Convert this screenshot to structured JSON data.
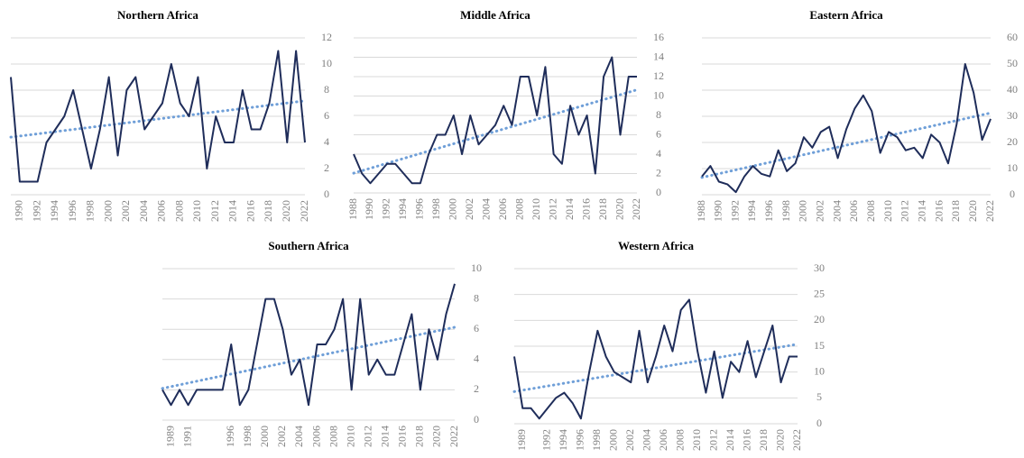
{
  "chart_data": [
    {
      "type": "line",
      "title": "Northern Africa",
      "x": [
        1989,
        1990,
        1991,
        1992,
        1993,
        1994,
        1995,
        1996,
        1997,
        1998,
        1999,
        2000,
        2001,
        2002,
        2003,
        2004,
        2005,
        2006,
        2007,
        2008,
        2009,
        2010,
        2011,
        2012,
        2013,
        2014,
        2015,
        2016,
        2017,
        2018,
        2019,
        2020,
        2021,
        2022
      ],
      "xlim": [
        1989,
        2022
      ],
      "xticks": [
        1990,
        1992,
        1994,
        1996,
        1998,
        2000,
        2002,
        2004,
        2006,
        2008,
        2010,
        2012,
        2014,
        2016,
        2018,
        2020,
        2022
      ],
      "ylim": [
        0,
        12
      ],
      "yticks": [
        0,
        2,
        4,
        6,
        8,
        10,
        12
      ],
      "grid": true,
      "trendline": true,
      "trend_color": "#6f9fd8",
      "series": [
        {
          "color": "#1f2d5a",
          "values": [
            9,
            1,
            1,
            1,
            4,
            5,
            6,
            8,
            5,
            2,
            5,
            9,
            3,
            8,
            9,
            5,
            6,
            7,
            10,
            7,
            6,
            9,
            2,
            6,
            4,
            4,
            8,
            5,
            5,
            7,
            11,
            4,
            11,
            4
          ]
        }
      ]
    },
    {
      "type": "line",
      "title": "Middle Africa",
      "x": [
        1988,
        1989,
        1990,
        1991,
        1992,
        1993,
        1994,
        1995,
        1996,
        1997,
        1998,
        1999,
        2000,
        2001,
        2002,
        2003,
        2004,
        2005,
        2006,
        2007,
        2008,
        2009,
        2010,
        2011,
        2012,
        2013,
        2014,
        2015,
        2016,
        2017,
        2018,
        2019,
        2020,
        2021,
        2022
      ],
      "xlim": [
        1988,
        2022
      ],
      "xticks": [
        1988,
        1990,
        1992,
        1994,
        1996,
        1998,
        2000,
        2002,
        2004,
        2006,
        2008,
        2010,
        2012,
        2014,
        2016,
        2018,
        2020,
        2022
      ],
      "ylim": [
        0,
        16
      ],
      "yticks": [
        0,
        2,
        4,
        6,
        8,
        10,
        12,
        14,
        16
      ],
      "grid": true,
      "trendline": true,
      "trend_color": "#6f9fd8",
      "series": [
        {
          "color": "#1f2d5a",
          "values": [
            4,
            2,
            1,
            2,
            3,
            3,
            2,
            1,
            1,
            4,
            6,
            6,
            8,
            4,
            8,
            5,
            6,
            7,
            9,
            7,
            12,
            12,
            8,
            13,
            4,
            3,
            9,
            6,
            8,
            2,
            12,
            14,
            6,
            12,
            12
          ]
        }
      ]
    },
    {
      "type": "line",
      "title": "Eastern  Africa",
      "x": [
        1988,
        1989,
        1990,
        1991,
        1992,
        1993,
        1994,
        1995,
        1996,
        1997,
        1998,
        1999,
        2000,
        2001,
        2002,
        2003,
        2004,
        2005,
        2006,
        2007,
        2008,
        2009,
        2010,
        2011,
        2012,
        2013,
        2014,
        2015,
        2016,
        2017,
        2018,
        2019,
        2020,
        2021,
        2022
      ],
      "xlim": [
        1988,
        2022
      ],
      "xticks": [
        1988,
        1990,
        1992,
        1994,
        1996,
        1998,
        2000,
        2002,
        2004,
        2006,
        2008,
        2010,
        2012,
        2014,
        2016,
        2018,
        2020,
        2022
      ],
      "ylim": [
        0,
        60
      ],
      "yticks": [
        0,
        10,
        20,
        30,
        40,
        50,
        60
      ],
      "grid": true,
      "trendline": true,
      "trend_color": "#6f9fd8",
      "series": [
        {
          "color": "#1f2d5a",
          "values": [
            7,
            11,
            5,
            4,
            1,
            7,
            11,
            8,
            7,
            17,
            9,
            12,
            22,
            18,
            24,
            26,
            14,
            25,
            33,
            38,
            32,
            16,
            24,
            22,
            17,
            18,
            14,
            23,
            20,
            12,
            27,
            50,
            39,
            21,
            29
          ]
        }
      ]
    },
    {
      "type": "line",
      "title": "Southern Africa",
      "x": [
        1988,
        1989,
        1990,
        1991,
        1992,
        1993,
        1994,
        1995,
        1996,
        1997,
        1998,
        1999,
        2000,
        2001,
        2002,
        2003,
        2004,
        2005,
        2006,
        2007,
        2008,
        2009,
        2010,
        2011,
        2012,
        2013,
        2014,
        2015,
        2016,
        2017,
        2018,
        2019,
        2020,
        2021,
        2022
      ],
      "xlim": [
        1988,
        2022
      ],
      "xticks": [
        1989,
        1991,
        1996,
        1998,
        2000,
        2002,
        2004,
        2006,
        2008,
        2010,
        2012,
        2014,
        2016,
        2018,
        2020,
        2022
      ],
      "ylim": [
        0,
        10
      ],
      "yticks": [
        0,
        2,
        4,
        6,
        8,
        10
      ],
      "grid": true,
      "trendline": true,
      "trend_color": "#6f9fd8",
      "series": [
        {
          "color": "#1f2d5a",
          "values": [
            2,
            1,
            2,
            1,
            2,
            2,
            2,
            2,
            5,
            1,
            2,
            5,
            8,
            8,
            6,
            3,
            4,
            1,
            5,
            5,
            6,
            8,
            2,
            8,
            3,
            4,
            3,
            3,
            5,
            7,
            2,
            6,
            4,
            7,
            9
          ]
        }
      ]
    },
    {
      "type": "line",
      "title": "Western Africa",
      "x": [
        1988,
        1989,
        1990,
        1991,
        1992,
        1993,
        1994,
        1995,
        1996,
        1997,
        1998,
        1999,
        2000,
        2001,
        2002,
        2003,
        2004,
        2005,
        2006,
        2007,
        2008,
        2009,
        2010,
        2011,
        2012,
        2013,
        2014,
        2015,
        2016,
        2017,
        2018,
        2019,
        2020,
        2021,
        2022
      ],
      "xlim": [
        1988,
        2022
      ],
      "xticks": [
        1989,
        1992,
        1994,
        1996,
        1998,
        2000,
        2002,
        2004,
        2006,
        2008,
        2010,
        2012,
        2014,
        2016,
        2018,
        2020,
        2022
      ],
      "ylim": [
        0,
        30
      ],
      "yticks": [
        0,
        5,
        10,
        15,
        20,
        25,
        30
      ],
      "grid": true,
      "trendline": true,
      "trend_color": "#6f9fd8",
      "series": [
        {
          "color": "#1f2d5a",
          "values": [
            13,
            3,
            3,
            1,
            3,
            5,
            6,
            4,
            1,
            10,
            18,
            13,
            10,
            9,
            8,
            18,
            8,
            13,
            19,
            14,
            22,
            24,
            14,
            6,
            14,
            5,
            12,
            10,
            16,
            9,
            14,
            19,
            8,
            13,
            13
          ]
        }
      ]
    }
  ]
}
